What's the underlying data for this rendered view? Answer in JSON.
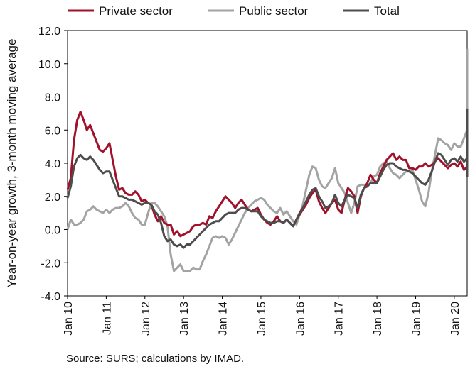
{
  "chart_data": {
    "type": "line",
    "title": "",
    "ylabel": "Year-on-year growth, 3-month moving average",
    "xlabel": "",
    "ylim": [
      -4,
      12
    ],
    "yticks": [
      "12.0",
      "10.0",
      "8.0",
      "6.0",
      "4.0",
      "2.0",
      "0.0",
      "-2.0",
      "-4.0"
    ],
    "ytick_values": [
      12,
      10,
      8,
      6,
      4,
      2,
      0,
      -2,
      -4
    ],
    "xticks": [
      "Jan 10",
      "Jan 11",
      "Jan 12",
      "Jan 13",
      "Jan 14",
      "Jan 15",
      "Jan 16",
      "Jan 17",
      "Jan 18",
      "Jan 19",
      "Jan 20"
    ],
    "x_start": "2010-01",
    "x_end": "2020-05",
    "legend_position": "top",
    "grid": false,
    "source": "Source: SURS; calculations by IMAD.",
    "series": [
      {
        "name": "Private sector",
        "color": "#a0112b",
        "values": [
          2.4,
          3.1,
          5.4,
          6.6,
          7.1,
          6.6,
          6.0,
          6.3,
          5.8,
          5.3,
          4.8,
          4.7,
          4.9,
          5.2,
          4.2,
          3.2,
          2.4,
          2.5,
          2.2,
          2.1,
          2.1,
          2.3,
          2.1,
          1.7,
          1.8,
          1.6,
          1.5,
          0.9,
          0.5,
          0.8,
          0.4,
          0.3,
          0.3,
          -0.3,
          -0.1,
          -0.4,
          -0.3,
          -0.2,
          -0.1,
          0.2,
          0.3,
          0.3,
          0.4,
          0.3,
          0.8,
          0.7,
          1.1,
          1.4,
          1.7,
          2.0,
          1.8,
          1.6,
          1.3,
          1.6,
          1.8,
          1.5,
          1.2,
          1.1,
          1.2,
          1.3,
          0.9,
          0.6,
          0.4,
          0.3,
          0.5,
          0.8,
          0.5,
          0.4,
          0.6,
          0.4,
          0.2,
          0.6,
          0.9,
          1.2,
          1.5,
          1.9,
          2.2,
          2.4,
          1.7,
          1.3,
          1.0,
          1.3,
          1.6,
          1.8,
          1.2,
          1.0,
          1.8,
          2.5,
          2.3,
          2.0,
          1.0,
          2.0,
          2.5,
          2.8,
          3.3,
          3.0,
          2.8,
          3.4,
          3.8,
          4.2,
          4.4,
          4.6,
          4.2,
          4.4,
          4.2,
          4.2,
          3.7,
          3.7,
          3.6,
          3.8,
          3.8,
          4.0,
          3.8,
          3.9,
          4.1,
          4.3,
          4.1,
          3.9,
          3.7,
          3.9,
          4.0,
          3.8,
          4.1,
          3.6,
          3.8,
          3.6,
          4.1,
          5.0,
          3.3,
          4.3,
          4.5
        ],
        "values_note": ""
      },
      {
        "name": "Public sector",
        "color": "#a3a3a3",
        "values": [
          0.0,
          0.6,
          0.3,
          0.3,
          0.4,
          0.6,
          1.1,
          1.2,
          1.4,
          1.2,
          1.1,
          1.0,
          1.2,
          1.0,
          1.2,
          1.3,
          1.3,
          1.4,
          1.6,
          1.4,
          1.0,
          0.7,
          0.6,
          0.3,
          0.3,
          1.0,
          1.6,
          1.6,
          1.4,
          1.1,
          0.8,
          0.2,
          -1.5,
          -2.5,
          -2.3,
          -2.1,
          -2.5,
          -2.5,
          -2.5,
          -2.3,
          -2.4,
          -2.4,
          -1.9,
          -1.5,
          -1.0,
          -0.5,
          -0.4,
          -0.5,
          -0.4,
          -0.5,
          -0.9,
          -0.6,
          -0.2,
          0.2,
          0.6,
          1.0,
          1.3,
          1.5,
          1.7,
          1.8,
          1.9,
          1.8,
          1.5,
          1.3,
          1.1,
          1.0,
          1.3,
          0.9,
          1.1,
          0.8,
          0.5,
          0.3,
          0.9,
          1.5,
          2.4,
          3.3,
          3.8,
          3.7,
          3.0,
          2.6,
          2.5,
          2.8,
          3.1,
          3.7,
          2.8,
          2.5,
          2.2,
          1.6,
          1.0,
          1.6,
          2.6,
          2.7,
          2.7,
          2.6,
          2.8,
          3.2,
          3.3,
          3.8,
          4.0,
          4.1,
          3.7,
          3.4,
          3.3,
          3.1,
          3.3,
          3.5,
          3.5,
          3.6,
          3.0,
          2.4,
          1.7,
          1.4,
          2.2,
          3.5,
          4.5,
          5.5,
          5.4,
          5.2,
          5.1,
          4.8,
          5.2,
          5.0,
          5.0,
          5.5,
          6.0,
          5.7,
          4.9,
          3.5,
          3.2,
          8.0,
          10.9
        ],
        "values_note": ""
      },
      {
        "name": "Total",
        "color": "#4d4d4d",
        "values": [
          1.9,
          2.6,
          3.8,
          4.3,
          4.5,
          4.3,
          4.2,
          4.4,
          4.2,
          3.9,
          3.6,
          3.4,
          3.5,
          3.5,
          3.0,
          2.5,
          2.0,
          2.0,
          1.9,
          1.8,
          1.8,
          1.7,
          1.6,
          1.5,
          1.6,
          1.6,
          1.5,
          1.1,
          0.9,
          0.4,
          -0.4,
          -0.7,
          -0.6,
          -0.9,
          -1.0,
          -0.9,
          -1.1,
          -0.9,
          -0.9,
          -0.7,
          -0.5,
          -0.3,
          -0.1,
          0.1,
          0.3,
          0.4,
          0.5,
          0.5,
          0.7,
          0.9,
          1.0,
          1.0,
          1.0,
          1.2,
          1.3,
          1.3,
          1.2,
          1.1,
          1.1,
          1.1,
          0.8,
          0.6,
          0.5,
          0.4,
          0.4,
          0.5,
          0.5,
          0.4,
          0.6,
          0.4,
          0.2,
          0.6,
          1.0,
          1.3,
          1.7,
          2.1,
          2.4,
          2.5,
          2.0,
          1.7,
          1.3,
          1.4,
          1.6,
          2.1,
          1.6,
          1.4,
          1.8,
          2.1,
          2.0,
          1.9,
          1.3,
          2.1,
          2.5,
          2.6,
          2.8,
          2.8,
          2.8,
          3.2,
          3.6,
          3.9,
          4.0,
          4.0,
          3.8,
          3.7,
          3.6,
          3.6,
          3.5,
          3.4,
          3.2,
          3.0,
          2.8,
          2.7,
          3.0,
          3.5,
          4.1,
          4.6,
          4.5,
          4.2,
          3.9,
          4.2,
          4.3,
          4.1,
          4.4,
          4.1,
          4.3,
          4.2,
          4.4,
          4.9,
          3.2,
          4.8,
          7.3
        ],
        "values_note": ""
      }
    ]
  }
}
